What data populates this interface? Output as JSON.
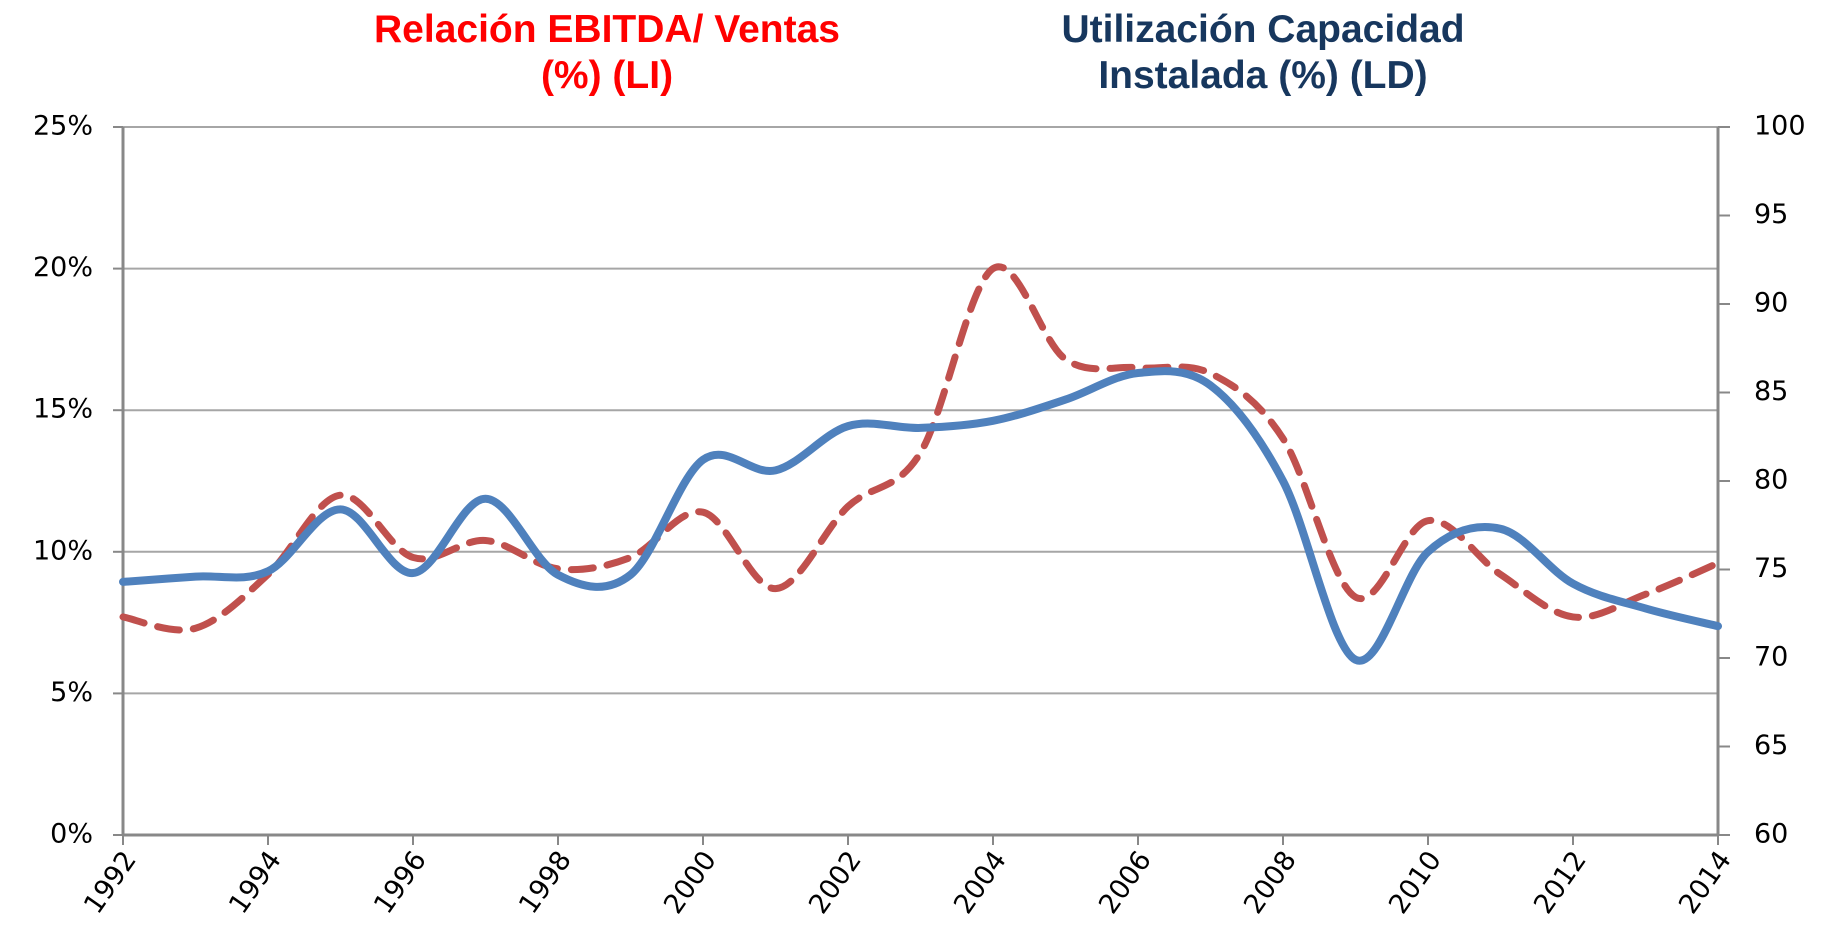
{
  "chart_data": {
    "type": "line",
    "title_left": "Relación EBITDA/ Ventas\n(%) (LI)",
    "title_right": "Utilización Capacidad\nInstalada (%) (LD)",
    "x": [
      1992,
      1993,
      1994,
      1995,
      1996,
      1997,
      1998,
      1999,
      2000,
      2001,
      2002,
      2003,
      2004,
      2005,
      2006,
      2007,
      2008,
      2009,
      2010,
      2011,
      2012,
      2013,
      2014
    ],
    "series": [
      {
        "name": "Relación EBITDA/ Ventas (%) (LI)",
        "color": "#c0504d",
        "dashed": true,
        "axis": "y",
        "values": [
          7.7,
          7.3,
          9.2,
          12.0,
          9.8,
          10.4,
          9.4,
          9.8,
          11.4,
          8.7,
          11.6,
          13.5,
          20.0,
          16.8,
          16.5,
          16.3,
          14.0,
          8.4,
          11.1,
          9.2,
          7.7,
          8.5,
          9.6
        ]
      },
      {
        "name": "Utilización Capacidad Instalada (%) (LD)",
        "color": "#4f81bd",
        "dashed": false,
        "axis": "y2",
        "values": [
          74.3,
          74.6,
          74.9,
          78.4,
          74.8,
          79.0,
          74.7,
          74.7,
          81.2,
          80.6,
          83.1,
          83.0,
          83.4,
          84.6,
          86.1,
          85.4,
          80.0,
          69.9,
          76.0,
          77.3,
          74.2,
          72.8,
          71.8
        ]
      }
    ],
    "xlim": [
      1992,
      2014
    ],
    "xticks": [
      1992,
      1994,
      1996,
      1998,
      2000,
      2002,
      2004,
      2006,
      2008,
      2010,
      2012,
      2014
    ],
    "ylim": [
      0,
      25
    ],
    "yticks": [
      {
        "value": 0,
        "label": "0%"
      },
      {
        "value": 5,
        "label": "5%"
      },
      {
        "value": 10,
        "label": "10%"
      },
      {
        "value": 15,
        "label": "15%"
      },
      {
        "value": 20,
        "label": "20%"
      },
      {
        "value": 25,
        "label": "25%"
      }
    ],
    "y2lim": [
      60,
      100
    ],
    "y2ticks": [
      60,
      65,
      70,
      75,
      80,
      85,
      90,
      95,
      100
    ],
    "grid": true,
    "title_left_color": "#ff0000",
    "title_right_color": "#17375e"
  }
}
